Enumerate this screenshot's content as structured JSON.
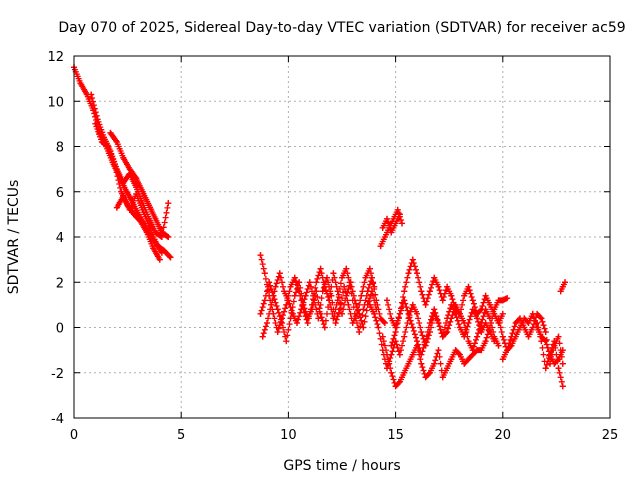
{
  "chart_data": {
    "type": "scatter",
    "title": "Day 070 of 2025, Sidereal Day-to-day VTEC variation (SDTVAR) for receiver ac59",
    "xlabel": "GPS time / hours",
    "ylabel": "SDTVAR / TECUs",
    "xlim": [
      0,
      25
    ],
    "ylim": [
      -4,
      12
    ],
    "xticks": [
      "0",
      "5",
      "10",
      "15",
      "20",
      "25"
    ],
    "yticks": [
      "-4",
      "-2",
      "0",
      "2",
      "4",
      "6",
      "8",
      "10",
      "12"
    ],
    "grid": true,
    "marker": "+",
    "series": [
      {
        "name": "SDTVAR",
        "color": "#ff0000",
        "tracks": [
          {
            "x": [
              0.0,
              0.3,
              0.6,
              0.9,
              1.2,
              1.5,
              1.8,
              2.1,
              2.4,
              2.7,
              3.0,
              3.3,
              3.6,
              3.9,
              4.2,
              4.5
            ],
            "y": [
              11.5,
              10.8,
              10.3,
              9.6,
              8.6,
              8.0,
              7.3,
              6.7,
              6.1,
              5.6,
              5.0,
              4.5,
              4.0,
              3.6,
              3.4,
              3.1
            ]
          },
          {
            "x": [
              0.8,
              1.1,
              1.4,
              1.7,
              2.0,
              2.3,
              2.6,
              2.9,
              3.2,
              3.5,
              3.8,
              4.1,
              4.4
            ],
            "y": [
              10.3,
              9.2,
              8.4,
              7.8,
              7.0,
              6.4,
              6.8,
              6.2,
              5.5,
              4.8,
              4.2,
              4.0,
              5.5
            ]
          },
          {
            "x": [
              1.0,
              1.3,
              1.6,
              1.9,
              2.2,
              2.5,
              2.8,
              3.1,
              3.4,
              3.7,
              4.0
            ],
            "y": [
              9.0,
              8.2,
              8.0,
              7.2,
              6.0,
              5.4,
              5.0,
              4.7,
              4.2,
              3.5,
              3.0
            ]
          },
          {
            "x": [
              1.7,
              2.0,
              2.3,
              2.6,
              2.9,
              3.2,
              3.5,
              3.8,
              4.1,
              4.4
            ],
            "y": [
              8.6,
              8.2,
              7.5,
              7.0,
              6.6,
              6.0,
              5.4,
              4.8,
              4.2,
              4.0
            ]
          },
          {
            "x": [
              2.0,
              2.3,
              2.6,
              2.9,
              3.2,
              3.5,
              3.8,
              4.1
            ],
            "y": [
              5.3,
              5.8,
              5.2,
              5.9,
              5.2,
              4.5,
              3.8,
              3.3
            ]
          },
          {
            "x": [
              8.7,
              8.9,
              9.1,
              9.3,
              9.5,
              9.7,
              9.9,
              10.1,
              10.3,
              10.5,
              10.7,
              10.9,
              11.1,
              11.3,
              11.5,
              11.7,
              11.9,
              12.1,
              12.3,
              12.5,
              12.7,
              12.9,
              13.1,
              13.3,
              13.5,
              13.7,
              13.9,
              14.1,
              14.3,
              14.5
            ],
            "y": [
              3.2,
              2.4,
              1.4,
              0.6,
              -0.2,
              0.4,
              1.0,
              1.8,
              2.2,
              1.6,
              0.8,
              0.2,
              1.0,
              2.0,
              2.6,
              1.8,
              1.2,
              0.4,
              1.2,
              2.2,
              2.6,
              1.8,
              0.6,
              -0.2,
              0.8,
              1.6,
              2.2,
              1.2,
              0.4,
              0.2
            ]
          },
          {
            "x": [
              8.7,
              8.9,
              9.1,
              9.3,
              9.5,
              9.7,
              9.9,
              10.1,
              10.3,
              10.5,
              10.7,
              10.9,
              11.1,
              11.3,
              11.5,
              11.7,
              11.9,
              12.1,
              12.3,
              12.5,
              12.7,
              12.9,
              13.1,
              13.3,
              13.5,
              13.7,
              13.9,
              14.1
            ],
            "y": [
              0.6,
              1.2,
              2.0,
              1.4,
              0.8,
              0.2,
              -0.6,
              0.4,
              1.4,
              2.0,
              1.0,
              0.4,
              0.8,
              1.6,
              0.6,
              0.0,
              1.2,
              2.4,
              1.6,
              0.6,
              1.4,
              2.0,
              1.2,
              0.6,
              0.0,
              1.0,
              1.6,
              0.8
            ]
          },
          {
            "x": [
              8.8,
              9.0,
              9.2,
              9.4,
              9.6,
              9.8,
              10.0,
              10.2,
              10.4,
              10.6,
              10.8,
              11.0,
              11.2,
              11.4,
              11.6,
              11.8,
              12.0,
              12.2,
              12.4,
              12.6,
              12.8,
              13.0,
              13.2,
              13.4,
              13.6,
              13.8,
              14.0
            ],
            "y": [
              -0.4,
              0.2,
              1.0,
              1.8,
              2.4,
              1.6,
              1.2,
              0.6,
              0.2,
              0.8,
              1.4,
              2.0,
              1.2,
              0.4,
              1.6,
              2.2,
              1.4,
              0.2,
              0.8,
              1.8,
              1.0,
              0.2,
              0.6,
              1.4,
              2.2,
              2.6,
              1.8
            ]
          },
          {
            "x": [
              14.3,
              14.5,
              14.7,
              14.9,
              15.1,
              15.3
            ],
            "y": [
              3.6,
              4.0,
              4.4,
              4.8,
              5.2,
              4.6
            ]
          },
          {
            "x": [
              14.4,
              14.6,
              14.8,
              15.0,
              15.2
            ],
            "y": [
              4.4,
              4.8,
              4.2,
              4.6,
              5.0
            ]
          },
          {
            "x": [
              14.4,
              14.6,
              14.8,
              15.0,
              15.2,
              15.4,
              15.6,
              15.8,
              16.0,
              16.2,
              16.4,
              16.6,
              16.8,
              17.0,
              17.2,
              17.4,
              17.6,
              17.8,
              18.0,
              18.2,
              18.4,
              18.6,
              18.8,
              19.0,
              19.2,
              19.4,
              19.6,
              19.8,
              20.0,
              20.2
            ],
            "y": [
              -0.4,
              -1.2,
              -2.0,
              -2.6,
              -2.4,
              -2.0,
              -1.6,
              -1.2,
              -0.8,
              -1.6,
              -2.2,
              -2.0,
              -1.6,
              -1.0,
              -2.2,
              -1.8,
              -1.4,
              -1.0,
              -1.2,
              -1.6,
              -1.4,
              -1.2,
              -1.0,
              -1.0,
              -0.6,
              0.0,
              0.8,
              1.2,
              1.2,
              1.3
            ]
          },
          {
            "x": [
              13.8,
              14.0,
              14.2,
              14.4,
              14.6,
              14.8,
              15.0,
              15.2,
              15.4,
              15.6,
              15.8,
              16.0,
              16.2,
              16.4,
              16.6,
              16.8,
              17.0,
              17.2,
              17.4,
              17.6,
              17.8,
              18.0,
              18.2,
              18.4,
              18.6,
              18.8,
              19.0,
              19.2,
              19.4,
              19.6,
              19.8
            ],
            "y": [
              1.0,
              0.6,
              0.0,
              -1.0,
              -1.8,
              -1.2,
              -0.6,
              -1.2,
              -0.4,
              0.4,
              1.0,
              0.6,
              -0.2,
              -0.8,
              -0.2,
              0.6,
              0.2,
              -0.4,
              -0.2,
              0.4,
              1.0,
              0.6,
              0.2,
              -0.6,
              -1.0,
              -0.4,
              0.2,
              0.8,
              0.4,
              -0.4,
              -0.8
            ]
          },
          {
            "x": [
              14.6,
              14.8,
              15.0,
              15.2,
              15.4,
              15.6,
              15.8,
              16.0,
              16.2,
              16.4,
              16.6,
              16.8,
              17.0,
              17.2,
              17.4,
              17.6,
              17.8,
              18.0,
              18.2,
              18.4,
              18.6,
              18.8,
              19.0,
              19.2,
              19.4,
              19.6,
              19.8,
              20.0
            ],
            "y": [
              1.2,
              0.4,
              0.0,
              0.6,
              1.6,
              2.4,
              3.0,
              2.4,
              1.6,
              1.0,
              1.6,
              2.2,
              1.8,
              1.2,
              1.8,
              1.4,
              0.8,
              0.6,
              1.4,
              1.8,
              1.2,
              0.6,
              0.8,
              1.4,
              1.0,
              0.6,
              0.2,
              0.6
            ]
          },
          {
            "x": [
              14.8,
              15.0,
              15.2,
              15.4,
              15.6,
              15.8,
              16.0,
              16.2,
              16.4,
              16.6,
              16.8,
              17.0,
              17.2,
              17.4,
              17.6,
              17.8,
              18.0,
              18.2,
              18.4,
              18.6,
              18.8,
              19.0,
              19.2,
              19.4,
              19.6
            ],
            "y": [
              -0.8,
              -0.2,
              0.6,
              1.2,
              0.6,
              0.0,
              -0.6,
              -1.2,
              -0.6,
              0.2,
              0.8,
              0.2,
              -0.4,
              0.4,
              1.0,
              0.6,
              0.0,
              -0.4,
              0.2,
              0.8,
              0.4,
              -0.2,
              0.2,
              -0.2,
              -0.6
            ]
          },
          {
            "x": [
              19.8,
              20.0,
              20.2,
              20.4,
              20.6,
              20.8,
              21.0,
              21.2,
              21.4,
              21.6,
              21.8,
              22.0,
              22.2,
              22.4,
              22.6,
              22.8
            ],
            "y": [
              0.4,
              -0.4,
              -1.0,
              -0.8,
              -0.4,
              0.0,
              0.4,
              0.2,
              0.6,
              0.0,
              -0.4,
              -0.6,
              -1.2,
              -1.6,
              -1.4,
              -1.0
            ]
          },
          {
            "x": [
              20.0,
              20.2,
              20.4,
              20.6,
              20.8,
              21.0,
              21.2,
              21.4,
              21.6,
              21.8,
              22.0,
              22.2,
              22.4,
              22.6,
              22.8
            ],
            "y": [
              -1.4,
              -1.0,
              -0.4,
              0.2,
              0.4,
              0.0,
              -0.4,
              0.0,
              0.6,
              0.4,
              -0.2,
              -1.6,
              -0.8,
              -0.4,
              -1.6
            ]
          },
          {
            "x": [
              21.6,
              21.8,
              22.0,
              22.2,
              22.4,
              22.6,
              22.8
            ],
            "y": [
              0.2,
              -0.6,
              -1.8,
              -1.2,
              -0.6,
              -1.8,
              -2.6
            ]
          },
          {
            "x": [
              22.7,
              22.8,
              22.9
            ],
            "y": [
              1.6,
              1.8,
              2.0
            ]
          }
        ]
      }
    ]
  }
}
